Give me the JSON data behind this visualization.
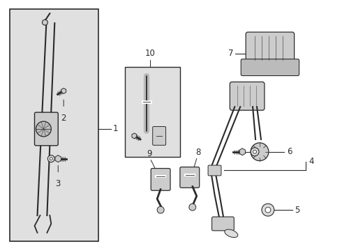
{
  "bg_color": "#ffffff",
  "diagram_bg": "#e0e0e0",
  "line_color": "#2a2a2a",
  "label_color": "#111111",
  "fig_width": 4.9,
  "fig_height": 3.6,
  "dpi": 100
}
